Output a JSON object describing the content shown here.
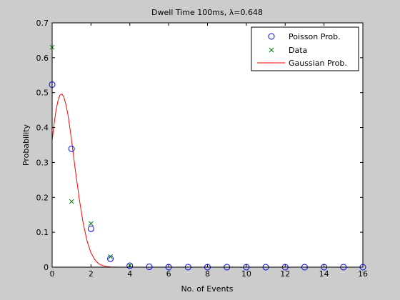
{
  "chart_data": {
    "type": "scatter",
    "title": "Dwell Time 100ms, λ=0.648",
    "xlabel": "No. of Events",
    "ylabel": "Probability",
    "xlim": [
      0,
      16
    ],
    "ylim": [
      0,
      0.7
    ],
    "xticks": [
      0,
      2,
      4,
      6,
      8,
      10,
      12,
      14,
      16
    ],
    "yticks": [
      0,
      0.1,
      0.2,
      0.3,
      0.4,
      0.5,
      0.6,
      0.7
    ],
    "grid": false,
    "legend_position": "top-right",
    "series": [
      {
        "name": "Poisson Prob.",
        "marker": "circle",
        "color": "#0000ff",
        "x": [
          0,
          1,
          2,
          3,
          4,
          5,
          6,
          7,
          8,
          9,
          10,
          11,
          12,
          13,
          14,
          15,
          16
        ],
        "y": [
          0.523,
          0.339,
          0.11,
          0.024,
          0.004,
          0.001,
          0,
          0,
          0,
          0,
          0,
          0,
          0,
          0,
          0,
          0,
          0
        ]
      },
      {
        "name": "Data",
        "marker": "x",
        "color": "#008000",
        "x": [
          0,
          1,
          2,
          3,
          4
        ],
        "y": [
          0.63,
          0.188,
          0.125,
          0.03,
          0.005
        ]
      },
      {
        "name": "Gaussian Prob.",
        "marker": "line",
        "color": "#ff0000",
        "x": [
          0,
          0.1,
          0.2,
          0.3,
          0.4,
          0.5,
          0.6,
          0.7,
          0.8,
          0.9,
          1.0,
          1.2,
          1.4,
          1.6,
          1.8,
          2.0,
          2.2,
          2.4,
          2.6,
          2.8,
          3.0,
          3.2,
          3.4,
          3.6,
          3.8,
          4.0,
          5.0,
          6.0,
          7.0,
          7.6
        ],
        "y": [
          0.363,
          0.41,
          0.449,
          0.477,
          0.493,
          0.496,
          0.488,
          0.468,
          0.44,
          0.404,
          0.363,
          0.276,
          0.194,
          0.125,
          0.075,
          0.041,
          0.021,
          0.0097,
          0.0042,
          0.0017,
          0.0006,
          0.0002,
          0.0001,
          0,
          0,
          0,
          0,
          0,
          0,
          0
        ]
      }
    ]
  }
}
